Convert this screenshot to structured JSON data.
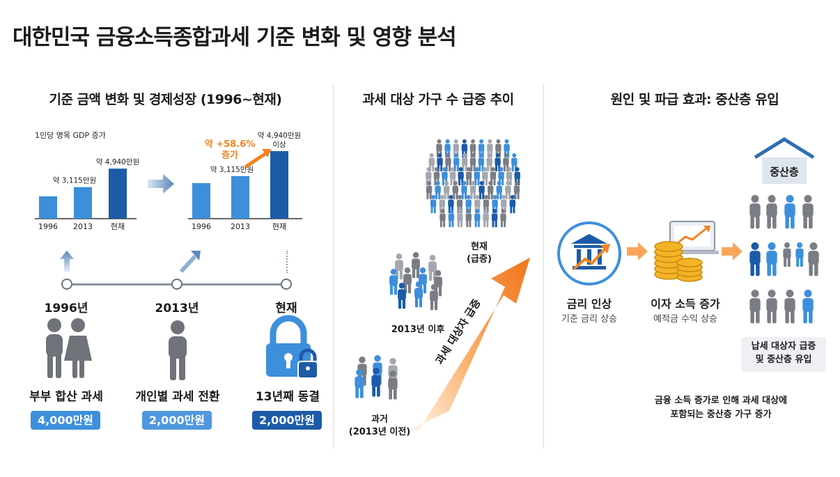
{
  "title": "대한민국 금융소득종합과세 기준 변화 및 영향 분석",
  "colors": {
    "accent_blue": "#3d8fdc",
    "dark_blue": "#1c5ba8",
    "orange": "#f58220",
    "gray": "#6f7278"
  },
  "left": {
    "heading": "기준 금액 변화 및 경제성장 (1996~현재)",
    "chart1": {
      "caption": "1인당 명목 GDP 증가",
      "categories": [
        "1996",
        "2013",
        "현재"
      ],
      "labels": [
        "약 3,115만원",
        "약 4,940만원"
      ]
    },
    "chart2": {
      "categories": [
        "1996",
        "2013",
        "현재"
      ],
      "labels": [
        "약 3,115만원",
        "약 4,940만원 이상"
      ],
      "growth_label": "약 +58.6% 증가"
    },
    "timeline": [
      {
        "year": "1996년",
        "caption": "부부 합산 과세",
        "amount": "4,000만원",
        "icon": "couple-icon"
      },
      {
        "year": "2013년",
        "caption": "개인별 과세 전환",
        "amount": "2,000만원",
        "icon": "person-icon"
      },
      {
        "year": "현재",
        "caption": "13년째 동결",
        "amount": "2,000만원",
        "icon": "lock-icon"
      }
    ]
  },
  "chart_data": [
    {
      "type": "bar",
      "title": "1인당 명목 GDP 증가",
      "categories": [
        "1996",
        "2013",
        "현재"
      ],
      "values": [
        2200,
        3115,
        4940
      ],
      "data_labels": [
        "",
        "약 3,115만원",
        "약 4,940만원"
      ],
      "xlabel": "",
      "ylabel": "",
      "ylim": [
        0,
        5500
      ],
      "grid": false
    },
    {
      "type": "bar",
      "title": "",
      "categories": [
        "1996",
        "2013",
        "현재"
      ],
      "values": [
        2600,
        3115,
        4940
      ],
      "data_labels": [
        "",
        "약 3,115만원",
        "약 4,940만원 이상"
      ],
      "annotation": "약 +58.6% 증가",
      "xlabel": "",
      "ylabel": "",
      "ylim": [
        0,
        5500
      ],
      "grid": false
    }
  ],
  "middle": {
    "heading": "과세 대상 가구 수 급증 추이",
    "groups": [
      {
        "label": "현재\n(급증)"
      },
      {
        "label": "2013년 이후"
      },
      {
        "label": "과거\n(2013년 이전)"
      }
    ],
    "arrow_label": "과세 대상자 급증"
  },
  "right": {
    "heading": "원인 및 파급 효과: 중산층 유입",
    "house_label": "중산층",
    "steps": [
      {
        "title": "금리 인상",
        "sub": "기준 금리 상승",
        "icon": "bank-growth-icon"
      },
      {
        "title": "이자 소득 증가",
        "sub": "예적금 수익 상승",
        "icon": "coins-laptop-icon"
      }
    ],
    "box_label": "납세 대상자 급증\n및 중산층 유입",
    "footnote": "금융 소득 증가로 인해 과세 대상에\n포함되는 중산층 가구 증가"
  }
}
